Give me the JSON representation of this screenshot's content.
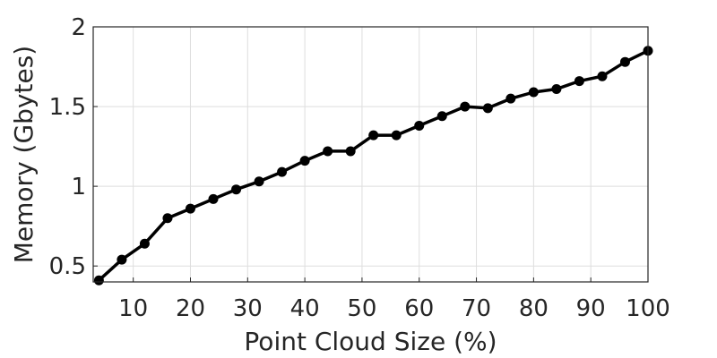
{
  "chart_data": {
    "type": "line",
    "title": "",
    "xlabel": "Point Cloud Size (%)",
    "ylabel": "Memory (Gbytes)",
    "xlim": [
      3,
      100
    ],
    "ylim": [
      0.4,
      2
    ],
    "xticks": [
      10,
      20,
      30,
      40,
      50,
      60,
      70,
      80,
      90,
      100
    ],
    "yticks": [
      0.5,
      1,
      1.5,
      2
    ],
    "ytick_labels": [
      "0.5",
      "1",
      "1.5",
      "2"
    ],
    "grid": true,
    "legend": "none",
    "series": [
      {
        "color": "#000000",
        "marker": "circle",
        "x": [
          4,
          8,
          12,
          16,
          20,
          24,
          28,
          32,
          36,
          40,
          44,
          48,
          52,
          56,
          60,
          64,
          68,
          72,
          76,
          80,
          84,
          88,
          92,
          96,
          100
        ],
        "y": [
          0.41,
          0.54,
          0.64,
          0.8,
          0.86,
          0.92,
          0.98,
          1.03,
          1.09,
          1.16,
          1.22,
          1.22,
          1.32,
          1.32,
          1.38,
          1.44,
          1.5,
          1.49,
          1.55,
          1.59,
          1.61,
          1.66,
          1.69,
          1.78,
          1.85
        ]
      }
    ]
  }
}
